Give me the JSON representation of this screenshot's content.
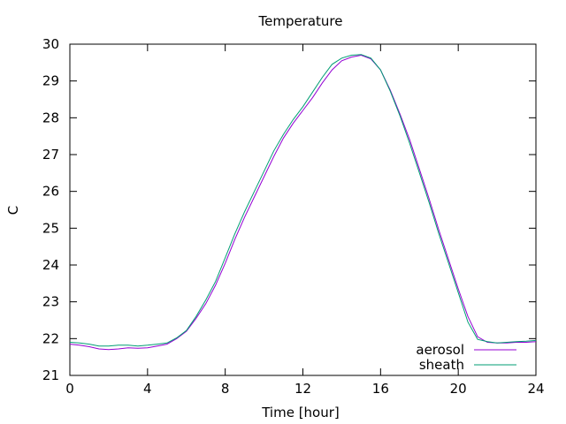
{
  "chart_data": {
    "type": "line",
    "title": "Temperature",
    "xlabel": "Time [hour]",
    "ylabel": "C",
    "xlim": [
      0,
      24
    ],
    "ylim": [
      21,
      30
    ],
    "xticks": [
      "0",
      "4",
      "8",
      "12",
      "16",
      "20",
      "24"
    ],
    "yticks": [
      "21",
      "22",
      "23",
      "24",
      "25",
      "26",
      "27",
      "28",
      "29",
      "30"
    ],
    "grid": false,
    "legend": "bottom-right",
    "series": [
      {
        "name": "aerosol",
        "color": "#9400d3",
        "x": [
          0,
          0.5,
          1,
          1.5,
          2,
          2.5,
          3,
          3.5,
          4,
          4.5,
          5,
          5.5,
          6,
          6.5,
          7,
          7.5,
          8,
          8.5,
          9,
          9.5,
          10,
          10.5,
          11,
          11.5,
          12,
          12.5,
          13,
          13.5,
          14,
          14.5,
          15,
          15.5,
          16,
          16.5,
          17,
          17.5,
          18,
          18.5,
          19,
          19.5,
          20,
          20.5,
          21,
          21.5,
          22,
          22.5,
          23,
          23.5,
          24
        ],
        "y": [
          21.85,
          21.82,
          21.78,
          21.72,
          21.7,
          21.72,
          21.75,
          21.74,
          21.75,
          21.8,
          21.85,
          22.0,
          22.2,
          22.55,
          22.95,
          23.45,
          24.05,
          24.7,
          25.3,
          25.85,
          26.4,
          26.95,
          27.45,
          27.85,
          28.2,
          28.55,
          28.95,
          29.3,
          29.55,
          29.65,
          29.7,
          29.6,
          29.3,
          28.75,
          28.1,
          27.4,
          26.6,
          25.8,
          24.95,
          24.15,
          23.35,
          22.6,
          22.05,
          21.9,
          21.88,
          21.88,
          21.9,
          21.9,
          21.92
        ]
      },
      {
        "name": "sheath",
        "color": "#009e73",
        "x": [
          0,
          0.5,
          1,
          1.5,
          2,
          2.5,
          3,
          3.5,
          4,
          4.5,
          5,
          5.5,
          6,
          6.5,
          7,
          7.5,
          8,
          8.5,
          9,
          9.5,
          10,
          10.5,
          11,
          11.5,
          12,
          12.5,
          13,
          13.5,
          14,
          14.5,
          15,
          15.5,
          16,
          16.5,
          17,
          17.5,
          18,
          18.5,
          19,
          19.5,
          20,
          20.5,
          21,
          21.5,
          22,
          22.5,
          23,
          23.5,
          24
        ],
        "y": [
          21.9,
          21.88,
          21.85,
          21.8,
          21.8,
          21.82,
          21.82,
          21.8,
          21.82,
          21.85,
          21.88,
          22.02,
          22.22,
          22.6,
          23.05,
          23.55,
          24.2,
          24.85,
          25.45,
          26.0,
          26.55,
          27.1,
          27.55,
          27.95,
          28.3,
          28.7,
          29.1,
          29.45,
          29.62,
          29.7,
          29.72,
          29.62,
          29.3,
          28.72,
          28.05,
          27.3,
          26.5,
          25.7,
          24.85,
          24.05,
          23.25,
          22.45,
          21.98,
          21.92,
          21.88,
          21.9,
          21.92,
          21.93,
          21.95
        ]
      }
    ]
  }
}
